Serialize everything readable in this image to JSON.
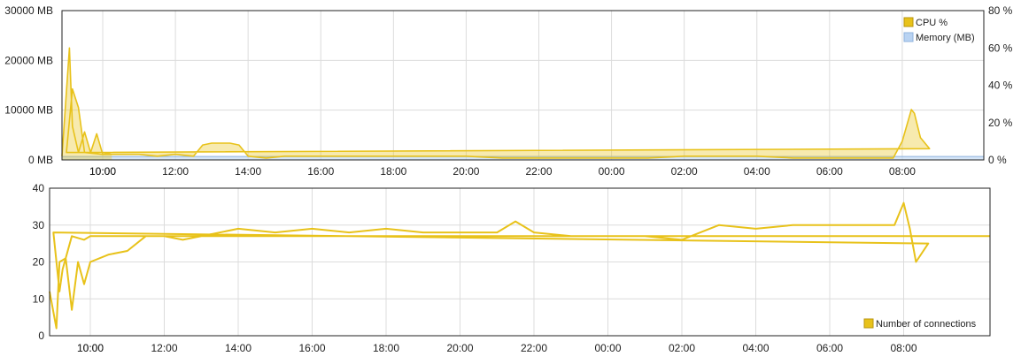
{
  "chart_data": [
    {
      "type": "area",
      "x_ticks": [
        "10:00",
        "12:00",
        "14:00",
        "16:00",
        "18:00",
        "20:00",
        "22:00",
        "00:00",
        "02:00",
        "04:00",
        "06:00",
        "08:00",
        "10:00"
      ],
      "y_left_ticks": [
        "0 MB",
        "10000 MB",
        "20000 MB",
        "30000 MB"
      ],
      "y_right_ticks": [
        "0 %",
        "20 %",
        "40 %",
        "60 %",
        "80 %"
      ],
      "y_left_range": [
        0,
        30000
      ],
      "y_right_range": [
        0,
        80
      ],
      "grid": true,
      "legend_position": "top-right",
      "series": [
        {
          "name": "CPU %",
          "color": "#e8c21a",
          "axis": "right",
          "x": [
            "09:00",
            "09:05",
            "09:10",
            "09:20",
            "09:30",
            "09:40",
            "09:50",
            "10:00",
            "10:30",
            "11:00",
            "11:30",
            "12:00",
            "12:30",
            "12:45",
            "13:00",
            "13:30",
            "13:45",
            "14:00",
            "14:30",
            "15:00",
            "16:00",
            "17:00",
            "18:00",
            "19:00",
            "20:00",
            "21:00",
            "22:00",
            "23:00",
            "00:00",
            "01:00",
            "02:00",
            "03:00",
            "04:00",
            "05:00",
            "06:00",
            "07:00",
            "07:45",
            "08:00",
            "08:15",
            "08:20",
            "08:30",
            "08:45",
            "09:00",
            "09:10",
            "09:20",
            "09:30",
            "10:00",
            "10:15"
          ],
          "values": [
            2,
            60,
            18,
            4,
            15,
            4,
            14,
            3,
            3,
            3,
            2,
            3,
            2,
            8,
            9,
            9,
            8,
            2,
            1,
            2,
            2,
            2,
            2,
            2,
            2,
            1,
            1,
            1,
            1,
            1,
            2,
            2,
            2,
            1,
            1,
            1,
            1,
            10,
            27,
            25,
            12,
            6,
            4,
            38,
            28,
            4,
            3,
            4
          ]
        },
        {
          "name": "Memory (MB)",
          "color": "#b9d3f2",
          "axis": "left",
          "x": [
            "09:00",
            "10:15"
          ],
          "values": [
            700,
            700
          ]
        }
      ]
    },
    {
      "type": "line",
      "x_ticks": [
        "10:00",
        "12:00",
        "14:00",
        "16:00",
        "18:00",
        "20:00",
        "22:00",
        "00:00",
        "02:00",
        "04:00",
        "06:00",
        "08:00",
        "10:00"
      ],
      "y_ticks": [
        "0",
        "10",
        "20",
        "30",
        "40"
      ],
      "y_range": [
        0,
        40
      ],
      "grid": true,
      "legend_position": "bottom-right",
      "series": [
        {
          "name": "Number of connections",
          "color": "#e8c21a",
          "x": [
            "09:00",
            "09:05",
            "09:10",
            "09:20",
            "09:30",
            "09:40",
            "09:50",
            "10:00",
            "10:30",
            "11:00",
            "11:30",
            "12:00",
            "12:30",
            "13:00",
            "14:00",
            "15:00",
            "16:00",
            "17:00",
            "18:00",
            "19:00",
            "20:00",
            "21:00",
            "21:30",
            "22:00",
            "23:00",
            "00:00",
            "01:00",
            "02:00",
            "02:30",
            "03:00",
            "04:00",
            "05:00",
            "06:00",
            "07:00",
            "07:45",
            "08:00",
            "08:10",
            "08:20",
            "08:40",
            "09:00",
            "09:10",
            "09:15",
            "09:30",
            "09:50",
            "10:00",
            "10:15"
          ],
          "values": [
            12,
            2,
            20,
            21,
            7,
            20,
            14,
            20,
            22,
            23,
            27,
            27,
            26,
            27,
            29,
            28,
            29,
            28,
            29,
            28,
            28,
            28,
            31,
            28,
            27,
            27,
            27,
            26,
            28,
            30,
            29,
            30,
            30,
            30,
            30,
            36,
            29,
            20,
            25,
            28,
            12,
            18,
            27,
            26,
            27,
            27
          ]
        }
      ]
    }
  ]
}
